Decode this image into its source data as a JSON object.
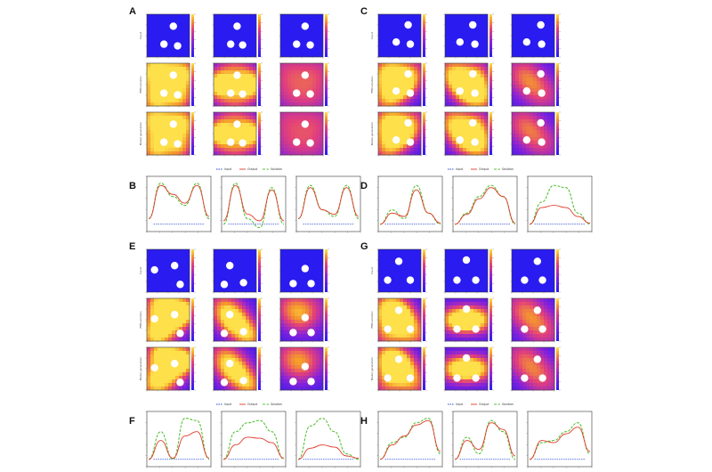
{
  "panel_labels": [
    "A",
    "B",
    "C",
    "D",
    "E",
    "F",
    "G",
    "H"
  ],
  "row_labels": [
    "Input",
    "FEM solution",
    "Model generation"
  ],
  "legend": [
    "Input",
    "Output",
    "Solution"
  ],
  "colors": {
    "input_blue": "#2a1bf0",
    "output_red": "#e23a2a",
    "solution_green": "#58c23a",
    "input_line": "#2b4ad8"
  },
  "groups": [
    {
      "heat": "A",
      "line": "B",
      "columns": [
        {
          "holes": [
            [
              0.62,
              0.28
            ],
            [
              0.4,
              0.7
            ],
            [
              0.72,
              0.74
            ]
          ],
          "field": [
            [
              0.15,
              0.15,
              0.9,
              0.35
            ],
            [
              0.85,
              0.25,
              0.85,
              0.3
            ],
            [
              0.2,
              0.9,
              0.8,
              0.3
            ],
            [
              0.8,
              0.85,
              0.6,
              0.25
            ],
            [
              0.5,
              0.5,
              0.15,
              0.25
            ]
          ]
        },
        {
          "holes": [
            [
              0.55,
              0.28
            ],
            [
              0.4,
              0.7
            ],
            [
              0.68,
              0.72
            ]
          ],
          "field": [
            [
              0.12,
              0.5,
              1.0,
              0.25
            ],
            [
              0.88,
              0.5,
              1.0,
              0.25
            ],
            [
              0.5,
              0.1,
              0.5,
              0.3
            ],
            [
              0.5,
              0.9,
              0.5,
              0.3
            ]
          ]
        },
        {
          "holes": [
            [
              0.58,
              0.28
            ],
            [
              0.38,
              0.7
            ],
            [
              0.7,
              0.72
            ]
          ],
          "field": [
            [
              0.15,
              0.15,
              0.45,
              0.4
            ],
            [
              0.9,
              0.2,
              0.4,
              0.35
            ],
            [
              0.8,
              0.85,
              0.35,
              0.35
            ],
            [
              0.2,
              0.8,
              0.3,
              0.35
            ]
          ]
        }
      ],
      "plots": [
        {
          "ylim": [
            0,
            0.45
          ],
          "x": [
            0,
            20,
            40,
            60,
            80,
            100
          ],
          "sol": [
            0.1,
            0.42,
            0.3,
            0.22,
            0.42,
            0.1
          ],
          "out": [
            0.1,
            0.4,
            0.32,
            0.24,
            0.4,
            0.12
          ],
          "inp": 0.05
        },
        {
          "ylim": [
            0,
            0.45
          ],
          "x": [
            0,
            20,
            40,
            60,
            80,
            100
          ],
          "sol": [
            0.05,
            0.42,
            0.1,
            0.02,
            0.38,
            0.05
          ],
          "out": [
            0.08,
            0.4,
            0.14,
            0.08,
            0.36,
            0.08
          ],
          "inp": 0.05
        },
        {
          "ylim": [
            0,
            0.45
          ],
          "x": [
            0,
            20,
            40,
            60,
            80,
            100
          ],
          "sol": [
            0.1,
            0.4,
            0.18,
            0.12,
            0.4,
            0.1
          ],
          "out": [
            0.1,
            0.38,
            0.18,
            0.14,
            0.38,
            0.12
          ],
          "inp": 0.05
        }
      ]
    },
    {
      "heat": "C",
      "line": "D",
      "columns": [
        {
          "holes": [
            [
              0.7,
              0.25
            ],
            [
              0.42,
              0.65
            ],
            [
              0.75,
              0.7
            ]
          ],
          "field": [
            [
              0.2,
              0.2,
              0.8,
              0.3
            ],
            [
              0.55,
              0.5,
              0.9,
              0.25
            ],
            [
              0.2,
              0.85,
              0.7,
              0.3
            ],
            [
              0.85,
              0.2,
              0.5,
              0.3
            ]
          ]
        },
        {
          "holes": [
            [
              0.65,
              0.25
            ],
            [
              0.35,
              0.65
            ],
            [
              0.7,
              0.7
            ]
          ],
          "field": [
            [
              0.5,
              0.55,
              1.0,
              0.28
            ],
            [
              0.15,
              0.2,
              0.7,
              0.3
            ],
            [
              0.85,
              0.8,
              0.7,
              0.3
            ],
            [
              0.8,
              0.2,
              0.4,
              0.25
            ]
          ]
        },
        {
          "holes": [
            [
              0.68,
              0.25
            ],
            [
              0.35,
              0.65
            ],
            [
              0.7,
              0.7
            ]
          ],
          "field": [
            [
              0.2,
              0.2,
              0.5,
              0.35
            ],
            [
              0.8,
              0.8,
              0.4,
              0.35
            ],
            [
              0.5,
              0.5,
              0.3,
              0.3
            ]
          ]
        }
      ],
      "plots": [
        {
          "ylim": [
            0,
            0.45
          ],
          "x": [
            0,
            20,
            40,
            60,
            80,
            100
          ],
          "sol": [
            0.05,
            0.18,
            0.1,
            0.4,
            0.15,
            0.05
          ],
          "out": [
            0.05,
            0.15,
            0.12,
            0.36,
            0.15,
            0.06
          ],
          "inp": 0.05
        },
        {
          "ylim": [
            0,
            0.45
          ],
          "x": [
            0,
            20,
            40,
            60,
            80,
            100
          ],
          "sol": [
            0.05,
            0.15,
            0.3,
            0.4,
            0.3,
            0.05
          ],
          "out": [
            0.05,
            0.14,
            0.28,
            0.38,
            0.3,
            0.06
          ],
          "inp": 0.05
        },
        {
          "ylim": [
            0,
            0.45
          ],
          "x": [
            0,
            20,
            40,
            60,
            80,
            100
          ],
          "sol": [
            0.05,
            0.25,
            0.4,
            0.38,
            0.15,
            0.05
          ],
          "out": [
            0.05,
            0.2,
            0.22,
            0.2,
            0.12,
            0.06
          ],
          "inp": 0.05
        }
      ]
    },
    {
      "heat": "E",
      "line": "F",
      "columns": [
        {
          "holes": [
            [
              0.18,
              0.48
            ],
            [
              0.65,
              0.38
            ],
            [
              0.78,
              0.82
            ]
          ],
          "field": [
            [
              0.35,
              0.15,
              1.0,
              0.3
            ],
            [
              0.2,
              0.85,
              0.9,
              0.3
            ],
            [
              0.6,
              0.6,
              0.5,
              0.25
            ],
            [
              0.9,
              0.3,
              0.9,
              0.25
            ]
          ]
        },
        {
          "holes": [
            [
              0.38,
              0.38
            ],
            [
              0.25,
              0.82
            ],
            [
              0.7,
              0.78
            ]
          ],
          "field": [
            [
              0.5,
              0.55,
              0.9,
              0.28
            ],
            [
              0.2,
              0.2,
              0.6,
              0.3
            ],
            [
              0.85,
              0.9,
              0.7,
              0.25
            ]
          ]
        },
        {
          "holes": [
            [
              0.58,
              0.45
            ],
            [
              0.3,
              0.8
            ],
            [
              0.72,
              0.8
            ]
          ],
          "field": [
            [
              0.2,
              0.2,
              0.5,
              0.35
            ],
            [
              0.8,
              0.2,
              0.3,
              0.35
            ],
            [
              0.5,
              0.5,
              0.35,
              0.3
            ]
          ]
        }
      ],
      "plots": [
        {
          "ylim": [
            0,
            0.45
          ],
          "x": [
            0,
            20,
            40,
            60,
            80,
            100
          ],
          "sol": [
            0.05,
            0.3,
            0.05,
            0.42,
            0.4,
            0.05
          ],
          "out": [
            0.05,
            0.22,
            0.06,
            0.26,
            0.3,
            0.06
          ],
          "inp": 0.05
        },
        {
          "ylim": [
            0,
            0.45
          ],
          "x": [
            0,
            20,
            40,
            60,
            80,
            100
          ],
          "sol": [
            0.05,
            0.3,
            0.38,
            0.4,
            0.3,
            0.05
          ],
          "out": [
            0.05,
            0.18,
            0.25,
            0.24,
            0.2,
            0.06
          ],
          "inp": 0.05
        },
        {
          "ylim": [
            0,
            0.45
          ],
          "x": [
            0,
            20,
            40,
            60,
            80,
            100
          ],
          "sol": [
            0.05,
            0.35,
            0.42,
            0.3,
            0.1,
            0.05
          ],
          "out": [
            0.05,
            0.15,
            0.18,
            0.16,
            0.08,
            0.06
          ],
          "inp": 0.05
        }
      ]
    },
    {
      "heat": "G",
      "line": "H",
      "columns": [
        {
          "holes": [
            [
              0.48,
              0.28
            ],
            [
              0.22,
              0.72
            ],
            [
              0.75,
              0.72
            ]
          ],
          "field": [
            [
              0.5,
              0.45,
              1.0,
              0.28
            ],
            [
              0.2,
              0.2,
              0.7,
              0.3
            ],
            [
              0.85,
              0.85,
              0.6,
              0.3
            ],
            [
              0.15,
              0.9,
              0.5,
              0.3
            ]
          ]
        },
        {
          "holes": [
            [
              0.5,
              0.25
            ],
            [
              0.28,
              0.72
            ],
            [
              0.72,
              0.72
            ]
          ],
          "field": [
            [
              0.5,
              0.5,
              1.0,
              0.22
            ],
            [
              0.12,
              0.5,
              0.7,
              0.25
            ],
            [
              0.88,
              0.5,
              0.7,
              0.25
            ]
          ]
        },
        {
          "holes": [
            [
              0.6,
              0.28
            ],
            [
              0.3,
              0.72
            ],
            [
              0.72,
              0.72
            ]
          ],
          "field": [
            [
              0.2,
              0.2,
              0.5,
              0.35
            ],
            [
              0.8,
              0.8,
              0.45,
              0.35
            ],
            [
              0.5,
              0.5,
              0.3,
              0.3
            ]
          ]
        }
      ],
      "plots": [
        {
          "ylim": [
            0,
            0.45
          ],
          "x": [
            0,
            20,
            40,
            60,
            80,
            100
          ],
          "sol": [
            0.05,
            0.2,
            0.25,
            0.38,
            0.42,
            0.1
          ],
          "out": [
            0.05,
            0.18,
            0.26,
            0.36,
            0.4,
            0.12
          ],
          "inp": 0.05
        },
        {
          "ylim": [
            0,
            0.45
          ],
          "x": [
            0,
            20,
            40,
            60,
            80,
            100
          ],
          "sol": [
            0.05,
            0.25,
            0.1,
            0.4,
            0.3,
            0.05
          ],
          "out": [
            0.05,
            0.22,
            0.14,
            0.38,
            0.32,
            0.08
          ],
          "inp": 0.05
        },
        {
          "ylim": [
            0,
            0.45
          ],
          "x": [
            0,
            20,
            40,
            60,
            80,
            100
          ],
          "sol": [
            0.05,
            0.2,
            0.22,
            0.3,
            0.38,
            0.1
          ],
          "out": [
            0.05,
            0.22,
            0.2,
            0.28,
            0.34,
            0.12
          ],
          "inp": 0.05
        }
      ]
    }
  ]
}
